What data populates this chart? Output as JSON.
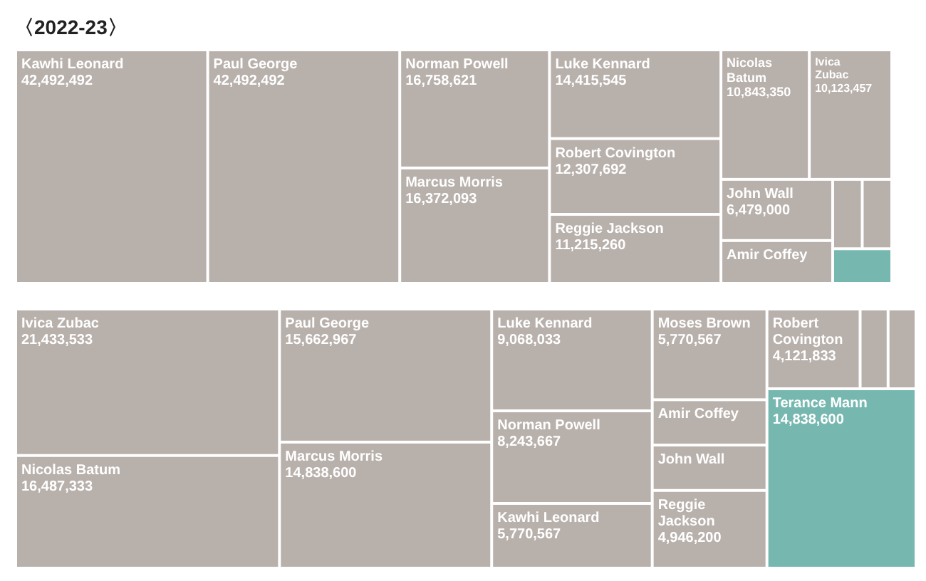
{
  "chart_data": [
    {
      "type": "other",
      "title": "〈2022-23〉",
      "categories": [
        "Kawhi Leonard",
        "Paul George",
        "Norman Powell",
        "Marcus Morris",
        "Luke Kennard",
        "Robert Covington",
        "Reggie Jackson",
        "Nicolas Batum",
        "Ivica Zubac",
        "John Wall",
        "Amir Coffey",
        null,
        null,
        null
      ],
      "values": [
        42492492,
        42492492,
        16758621,
        16372093,
        14415545,
        12307692,
        11215260,
        10843350,
        10123457,
        6479000,
        null,
        null,
        null,
        null
      ],
      "value_labels": [
        "42,492,492",
        "42,492,492",
        "16,758,621",
        "16,372,093",
        "14,415,545",
        "12,307,692",
        "11,215,260",
        "10,843,350",
        "10,123,457",
        "6,479,000",
        null,
        null,
        null,
        null
      ],
      "colors": [
        "#b8b0ab",
        "#b8b0ab",
        "#b8b0ab",
        "#b8b0ab",
        "#b8b0ab",
        "#b8b0ab",
        "#b8b0ab",
        "#b8b0ab",
        "#b8b0ab",
        "#b8b0ab",
        "#b8b0ab",
        "#b8b0ab",
        "#b8b0ab",
        "#76b8b0"
      ]
    },
    {
      "type": "other",
      "categories": [
        "Ivica Zubac",
        "Nicolas Batum",
        "Paul George",
        "Marcus Morris",
        "Luke Kennard",
        "Norman Powell",
        "Kawhi Leonard",
        "Moses Brown",
        "Amir Coffey",
        "John Wall",
        "Reggie Jackson",
        "Robert Covington",
        null,
        null,
        "Terance Mann"
      ],
      "values": [
        21433533,
        16487333,
        15662967,
        14838600,
        9068033,
        8243667,
        5770567,
        5770567,
        null,
        null,
        4946200,
        4121833,
        null,
        null,
        14838600
      ],
      "value_labels": [
        "21,433,533",
        "16,487,333",
        "15,662,967",
        "14,838,600",
        "9,068,033",
        "8,243,667",
        "5,770,567",
        "5,770,567",
        null,
        null,
        "4,946,200",
        "4,121,833",
        null,
        null,
        "14,838,600"
      ],
      "colors": [
        "#b8b0ab",
        "#b8b0ab",
        "#b8b0ab",
        "#b8b0ab",
        "#b8b0ab",
        "#b8b0ab",
        "#b8b0ab",
        "#b8b0ab",
        "#b8b0ab",
        "#b8b0ab",
        "#b8b0ab",
        "#b8b0ab",
        "#b8b0ab",
        "#b8b0ab",
        "#76b8b0"
      ]
    }
  ]
}
